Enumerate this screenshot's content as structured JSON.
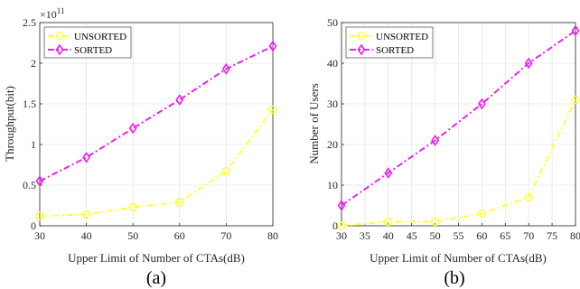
{
  "chart_data": [
    {
      "type": "line",
      "caption": "(a)",
      "xlabel": "Upper Limit of Number of CTAs(dB)",
      "ylabel": "Throughput(bit)",
      "y_multiplier": "×10",
      "y_multiplier_exponent": "11",
      "xlim": [
        30,
        80
      ],
      "ylim": [
        0,
        2.5
      ],
      "xticks": [
        30,
        40,
        50,
        60,
        70,
        80
      ],
      "yticks": [
        0,
        0.5,
        1,
        1.5,
        2,
        2.5
      ],
      "ytick_labels": [
        "0",
        "0.5",
        "1",
        "1.5",
        "2",
        "2.5"
      ],
      "grid": true,
      "legend_position": "top-left",
      "series": [
        {
          "name": "UNSORTED",
          "color": "#ffff44",
          "marker": "circle",
          "x": [
            30,
            40,
            50,
            60,
            70,
            80
          ],
          "y": [
            0.12,
            0.14,
            0.23,
            0.29,
            0.67,
            1.43
          ]
        },
        {
          "name": "SORTED",
          "color": "#ee22ee",
          "marker": "diamond",
          "x": [
            30,
            40,
            50,
            60,
            70,
            80
          ],
          "y": [
            0.55,
            0.84,
            1.2,
            1.55,
            1.93,
            2.21
          ]
        }
      ]
    },
    {
      "type": "line",
      "caption": "(b)",
      "xlabel": "Upper Limit of Number of CTAs(dB)",
      "ylabel": "Number of Users",
      "xlim": [
        30,
        80
      ],
      "ylim": [
        0,
        50
      ],
      "xticks": [
        30,
        35,
        40,
        45,
        50,
        55,
        60,
        65,
        70,
        75,
        80
      ],
      "yticks": [
        0,
        10,
        20,
        30,
        40,
        50
      ],
      "ytick_labels": [
        "0",
        "10",
        "20",
        "30",
        "40",
        "50"
      ],
      "grid": true,
      "legend_position": "top-left",
      "series": [
        {
          "name": "UNSORTED",
          "color": "#ffff44",
          "marker": "circle",
          "x": [
            30,
            40,
            50,
            60,
            70,
            80
          ],
          "y": [
            0,
            1,
            1,
            3,
            7,
            31
          ]
        },
        {
          "name": "SORTED",
          "color": "#ee22ee",
          "marker": "diamond",
          "x": [
            30,
            40,
            50,
            60,
            70,
            80
          ],
          "y": [
            5,
            13,
            21,
            30,
            40,
            48
          ]
        }
      ]
    }
  ]
}
